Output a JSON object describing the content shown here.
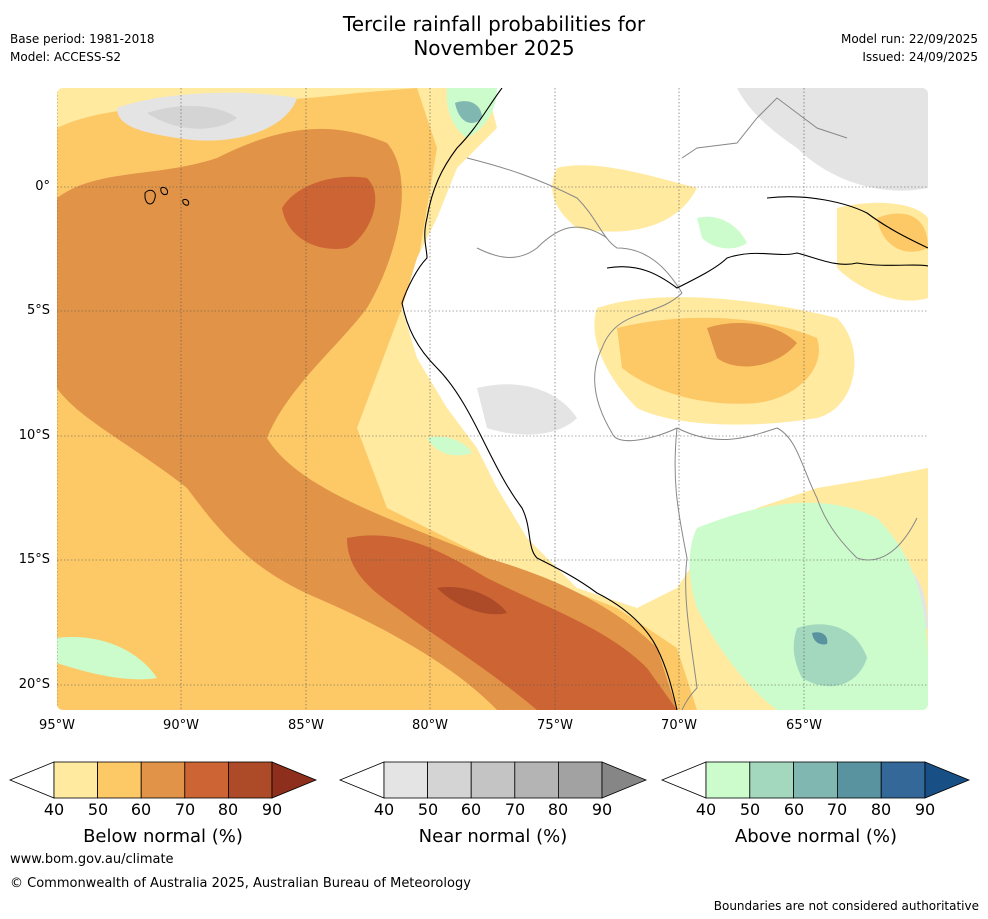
{
  "header": {
    "title_line1": "Tercile rainfall probabilities for",
    "title_line2": "November 2025",
    "base_period": "Base period: 1981-2018",
    "model": "Model: ACCESS-S2",
    "model_run": "Model run: 22/09/2025",
    "issued": "Issued: 24/09/2025"
  },
  "axes": {
    "lat_labels": [
      "0°",
      "5°S",
      "10°S",
      "15°S",
      "20°S"
    ],
    "lon_labels": [
      "95°W",
      "90°W",
      "85°W",
      "80°W",
      "75°W",
      "70°W",
      "65°W"
    ]
  },
  "legends": {
    "below": {
      "title": "Below normal (%)",
      "ticks": [
        "40",
        "50",
        "60",
        "70",
        "80",
        "90"
      ],
      "colors": [
        "#ffeaa0",
        "#fdc967",
        "#e19347",
        "#cd6434",
        "#ad4a27",
        "#8e2e1c"
      ]
    },
    "near": {
      "title": "Near normal (%)",
      "ticks": [
        "40",
        "50",
        "60",
        "70",
        "80",
        "90"
      ],
      "colors": [
        "#e4e4e4",
        "#d4d4d4",
        "#c4c4c4",
        "#b4b4b4",
        "#a2a2a2",
        "#868686"
      ]
    },
    "above": {
      "title": "Above normal (%)",
      "ticks": [
        "40",
        "50",
        "60",
        "70",
        "80",
        "90"
      ],
      "colors": [
        "#ccfccc",
        "#a3d8bf",
        "#80b7b0",
        "#5a93a0",
        "#336898",
        "#184f85"
      ]
    }
  },
  "footer": {
    "url": "www.bom.gov.au/climate",
    "copyright": "© Commonwealth of Australia 2025, Australian Bureau of Meteorology",
    "disclaimer": "Boundaries are not considered authoritative"
  }
}
